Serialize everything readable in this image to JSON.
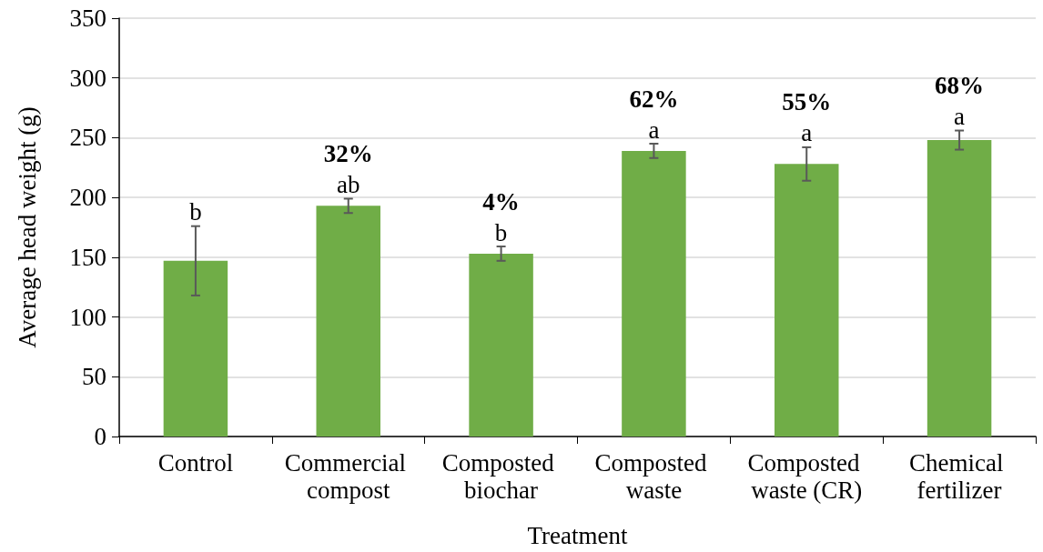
{
  "chart_data": {
    "type": "bar",
    "xlabel": "Treatment",
    "ylabel": "Average head weight (g)",
    "categories": [
      "Control",
      "Commercial compost",
      "Composted biochar",
      "Composted waste",
      "Composted waste (CR)",
      "Chemical fertilizer"
    ],
    "values": [
      147,
      193,
      153,
      239,
      228,
      248
    ],
    "errors": [
      29,
      6,
      6,
      6,
      14,
      8
    ],
    "color": "#70ad47",
    "value_labels": [
      "b",
      "ab",
      "b",
      "a",
      "a",
      "a"
    ],
    "ylim": [
      0,
      350
    ],
    "yticks": [
      0,
      50,
      100,
      150,
      200,
      250,
      300,
      350
    ],
    "grid": "y",
    "annotations": [
      "32%",
      "4%",
      "62%",
      "55%",
      "68%"
    ]
  }
}
